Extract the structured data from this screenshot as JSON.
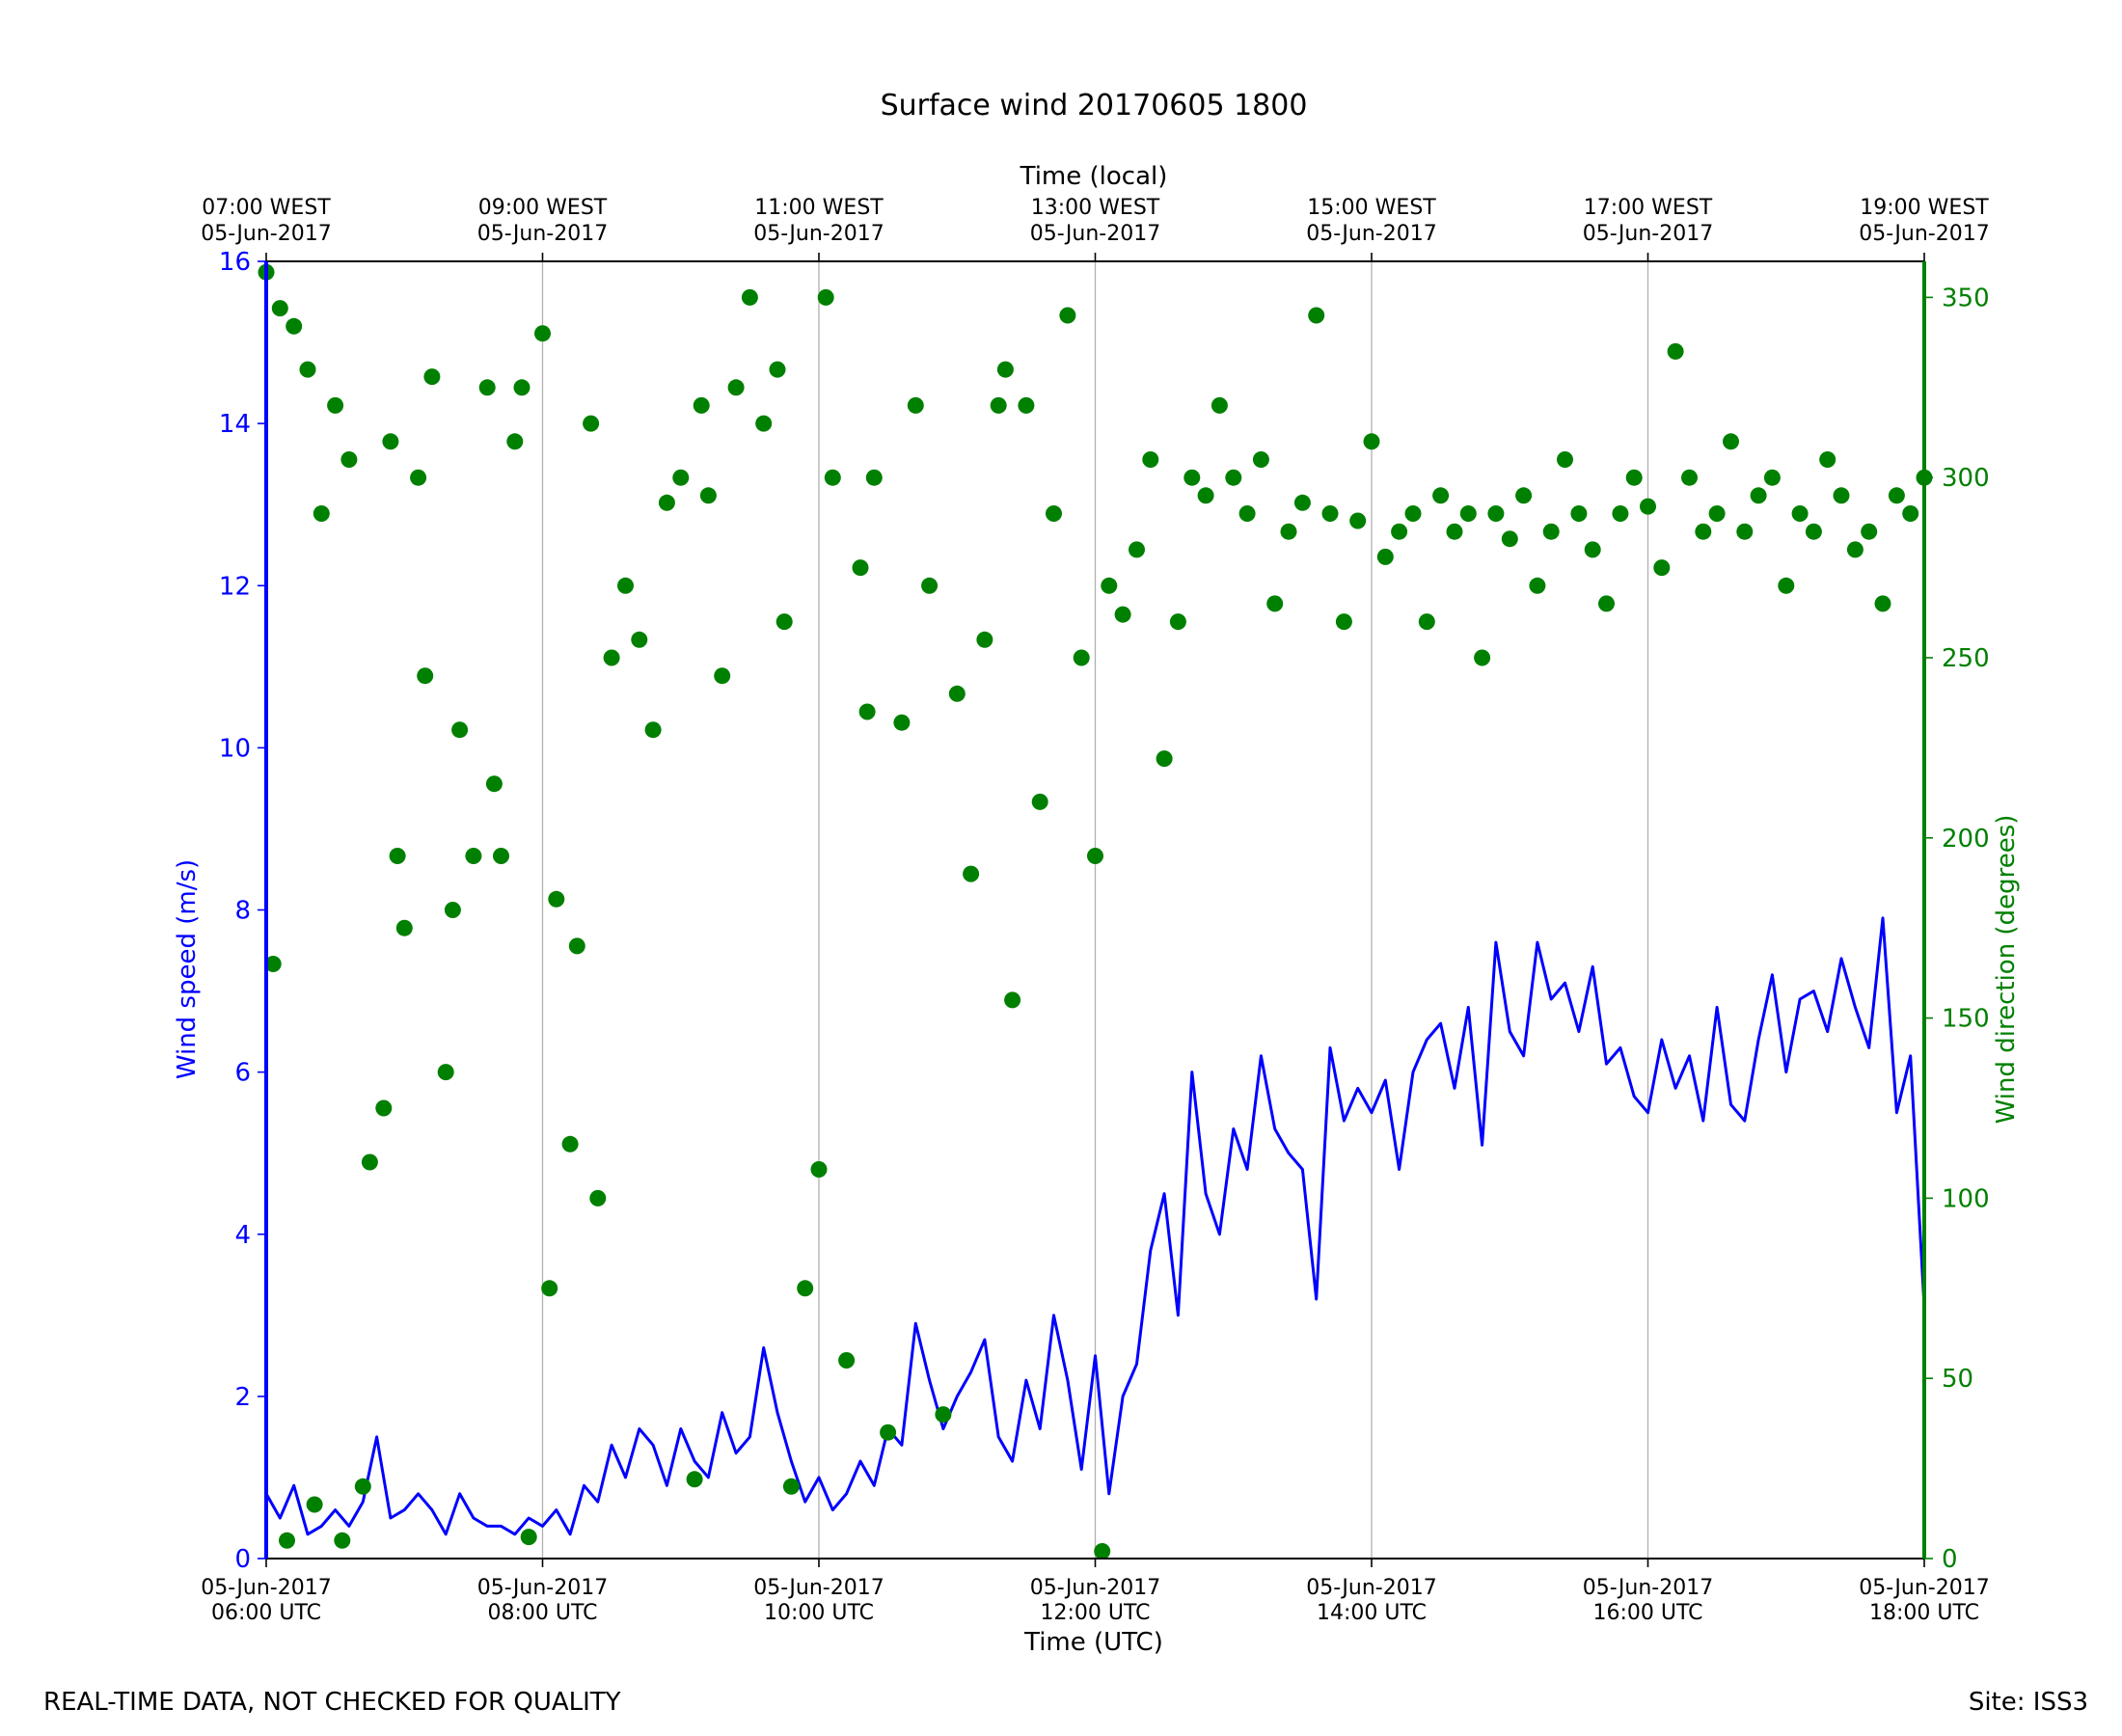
{
  "chart_data": {
    "type": "line",
    "title": "Surface wind 20170605 1800",
    "xlabel": "Time (UTC)",
    "xlabel_top": "Time (local)",
    "ylabel": "Wind speed (m/s)",
    "ylabel_right": "Wind direction (degrees)",
    "x_unit": "hours UTC on 05-Jun-2017",
    "xlim": [
      6,
      18
    ],
    "ylim": [
      0,
      16
    ],
    "ylim_right": [
      0,
      360
    ],
    "yticks": [
      "0",
      "2",
      "4",
      "6",
      "8",
      "10",
      "12",
      "14",
      "16"
    ],
    "yticks_right": [
      "0",
      "50",
      "100",
      "150",
      "200",
      "250",
      "300",
      "350"
    ],
    "xticks_bottom": [
      {
        "date": "05-Jun-2017",
        "time": "06:00 UTC"
      },
      {
        "date": "05-Jun-2017",
        "time": "08:00 UTC"
      },
      {
        "date": "05-Jun-2017",
        "time": "10:00 UTC"
      },
      {
        "date": "05-Jun-2017",
        "time": "12:00 UTC"
      },
      {
        "date": "05-Jun-2017",
        "time": "14:00 UTC"
      },
      {
        "date": "05-Jun-2017",
        "time": "16:00 UTC"
      },
      {
        "date": "05-Jun-2017",
        "time": "18:00 UTC"
      }
    ],
    "xticks_top": [
      {
        "time": "07:00 WEST",
        "date": "05-Jun-2017"
      },
      {
        "time": "09:00 WEST",
        "date": "05-Jun-2017"
      },
      {
        "time": "11:00 WEST",
        "date": "05-Jun-2017"
      },
      {
        "time": "13:00 WEST",
        "date": "05-Jun-2017"
      },
      {
        "time": "15:00 WEST",
        "date": "05-Jun-2017"
      },
      {
        "time": "17:00 WEST",
        "date": "05-Jun-2017"
      },
      {
        "time": "19:00 WEST",
        "date": "05-Jun-2017"
      }
    ],
    "grid": "vertical lines at major x ticks",
    "series": [
      {
        "kind": "line",
        "color": "#0000ff",
        "x": [
          6.0,
          6.1,
          6.2,
          6.3,
          6.4,
          6.5,
          6.6,
          6.7,
          6.8,
          6.9,
          7.0,
          7.1,
          7.2,
          7.3,
          7.4,
          7.5,
          7.6,
          7.7,
          7.8,
          7.9,
          8.0,
          8.1,
          8.2,
          8.3,
          8.4,
          8.5,
          8.6,
          8.7,
          8.8,
          8.9,
          9.0,
          9.1,
          9.2,
          9.3,
          9.4,
          9.5,
          9.6,
          9.7,
          9.8,
          9.9,
          10.0,
          10.1,
          10.2,
          10.3,
          10.4,
          10.5,
          10.6,
          10.7,
          10.8,
          10.9,
          11.0,
          11.1,
          11.2,
          11.3,
          11.4,
          11.5,
          11.6,
          11.7,
          11.8,
          11.9,
          12.0,
          12.1,
          12.2,
          12.3,
          12.4,
          12.5,
          12.6,
          12.7,
          12.8,
          12.9,
          13.0,
          13.1,
          13.2,
          13.3,
          13.4,
          13.5,
          13.6,
          13.7,
          13.8,
          13.9,
          14.0,
          14.1,
          14.2,
          14.3,
          14.4,
          14.5,
          14.6,
          14.7,
          14.8,
          14.9,
          15.0,
          15.1,
          15.2,
          15.3,
          15.4,
          15.5,
          15.6,
          15.7,
          15.8,
          15.9,
          16.0,
          16.1,
          16.2,
          16.3,
          16.4,
          16.5,
          16.6,
          16.7,
          16.8,
          16.9,
          17.0,
          17.1,
          17.2,
          17.3,
          17.4,
          17.5,
          17.6,
          17.7,
          17.8,
          17.9,
          18.0
        ],
        "values": [
          0.8,
          0.5,
          0.9,
          0.3,
          0.4,
          0.6,
          0.4,
          0.7,
          1.5,
          0.5,
          0.6,
          0.8,
          0.6,
          0.3,
          0.8,
          0.5,
          0.4,
          0.4,
          0.3,
          0.5,
          0.4,
          0.6,
          0.3,
          0.9,
          0.7,
          1.4,
          1.0,
          1.6,
          1.4,
          0.9,
          1.6,
          1.2,
          1.0,
          1.8,
          1.3,
          1.5,
          2.6,
          1.8,
          1.2,
          0.7,
          1.0,
          0.6,
          0.8,
          1.2,
          0.9,
          1.6,
          1.4,
          2.9,
          2.2,
          1.6,
          2.0,
          2.3,
          2.7,
          1.5,
          1.2,
          2.2,
          1.6,
          3.0,
          2.2,
          1.1,
          2.5,
          0.8,
          2.0,
          2.4,
          3.8,
          4.5,
          3.0,
          6.0,
          4.5,
          4.0,
          5.3,
          4.8,
          6.2,
          5.3,
          5.0,
          4.8,
          3.2,
          6.3,
          5.4,
          5.8,
          5.5,
          5.9,
          4.8,
          6.0,
          6.4,
          6.6,
          5.8,
          6.8,
          5.1,
          7.6,
          6.5,
          6.2,
          7.6,
          6.9,
          7.1,
          6.5,
          7.3,
          6.1,
          6.3,
          5.7,
          5.5,
          6.4,
          5.8,
          6.2,
          5.4,
          6.8,
          5.6,
          5.4,
          6.4,
          7.2,
          6.0,
          6.9,
          7.0,
          6.5,
          7.4,
          6.8,
          6.3,
          7.9,
          5.5,
          6.2,
          3.1
        ]
      },
      {
        "kind": "scatter",
        "axis": "right",
        "color": "#008000",
        "x": [
          6.0,
          6.05,
          6.1,
          6.15,
          6.2,
          6.3,
          6.35,
          6.4,
          6.5,
          6.55,
          6.6,
          6.7,
          6.75,
          6.85,
          6.9,
          6.95,
          7.0,
          7.1,
          7.15,
          7.2,
          7.3,
          7.35,
          7.4,
          7.5,
          7.6,
          7.65,
          7.7,
          7.8,
          7.85,
          7.9,
          8.0,
          8.05,
          8.1,
          8.2,
          8.25,
          8.35,
          8.4,
          8.5,
          8.6,
          8.7,
          8.8,
          8.9,
          9.0,
          9.1,
          9.15,
          9.2,
          9.3,
          9.4,
          9.5,
          9.6,
          9.7,
          9.75,
          9.8,
          9.9,
          10.0,
          10.05,
          10.1,
          10.2,
          10.3,
          10.35,
          10.4,
          10.5,
          10.6,
          10.7,
          10.8,
          10.9,
          11.0,
          11.1,
          11.2,
          11.3,
          11.35,
          11.4,
          11.5,
          11.6,
          11.7,
          11.8,
          11.9,
          12.0,
          12.05,
          12.1,
          12.2,
          12.3,
          12.4,
          12.5,
          12.6,
          12.7,
          12.8,
          12.9,
          13.0,
          13.1,
          13.2,
          13.3,
          13.4,
          13.5,
          13.6,
          13.7,
          13.8,
          13.9,
          14.0,
          14.1,
          14.2,
          14.3,
          14.4,
          14.5,
          14.6,
          14.7,
          14.8,
          14.9,
          15.0,
          15.1,
          15.2,
          15.3,
          15.4,
          15.5,
          15.6,
          15.7,
          15.8,
          15.9,
          16.0,
          16.1,
          16.2,
          16.3,
          16.4,
          16.5,
          16.6,
          16.7,
          16.8,
          16.9,
          17.0,
          17.1,
          17.2,
          17.3,
          17.4,
          17.5,
          17.6,
          17.7,
          17.8,
          17.9,
          18.0
        ],
        "values": [
          357,
          165,
          347,
          5,
          342,
          330,
          15,
          290,
          320,
          5,
          305,
          20,
          110,
          125,
          310,
          195,
          175,
          300,
          245,
          328,
          135,
          180,
          230,
          195,
          325,
          215,
          195,
          310,
          325,
          6,
          340,
          75,
          183,
          115,
          170,
          315,
          100,
          250,
          270,
          255,
          230,
          293,
          300,
          22,
          320,
          295,
          245,
          325,
          350,
          315,
          330,
          260,
          20,
          75,
          108,
          350,
          300,
          55,
          275,
          235,
          300,
          35,
          232,
          320,
          270,
          40,
          240,
          190,
          255,
          320,
          330,
          155,
          320,
          210,
          290,
          345,
          250,
          195,
          2,
          270,
          262,
          280,
          305,
          222,
          260,
          300,
          295,
          320,
          300,
          290,
          305,
          265,
          285,
          293,
          345,
          290,
          260,
          288,
          310,
          278,
          285,
          290,
          260,
          295,
          285,
          290,
          250,
          290,
          283,
          295,
          270,
          285,
          305,
          290,
          280,
          265,
          290,
          300,
          292,
          275,
          335,
          300,
          285,
          290,
          310,
          285,
          295,
          300,
          270,
          290,
          285,
          305,
          295,
          280,
          285,
          265,
          295,
          290,
          300
        ]
      }
    ]
  },
  "footer": {
    "left": "REAL-TIME DATA, NOT CHECKED FOR QUALITY",
    "right": "Site: ISS3"
  },
  "colors": {
    "speed": "#0000ff",
    "direction": "#008000",
    "grid": "#b0b0b0"
  }
}
